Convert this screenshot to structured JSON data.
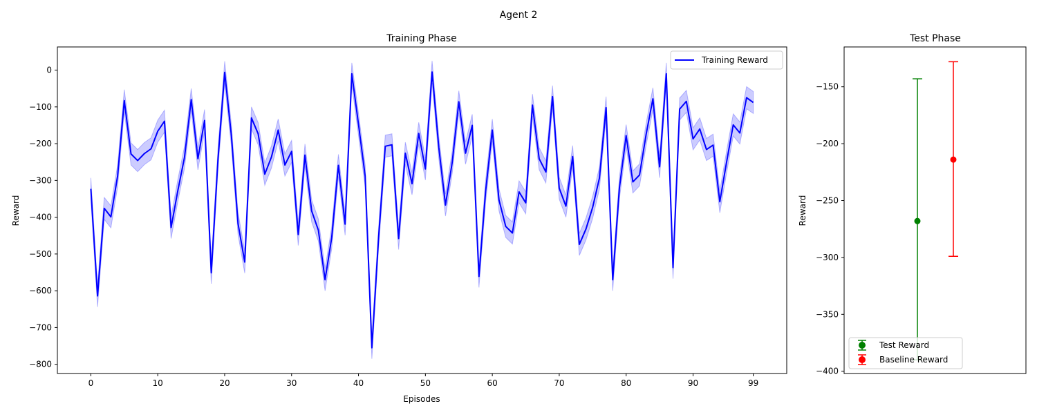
{
  "figure": {
    "suptitle": "Agent 2"
  },
  "chart_data": [
    {
      "type": "line",
      "title": "Training Phase",
      "xlabel": "Episodes",
      "ylabel": "Reward",
      "xlim": [
        -5,
        104
      ],
      "ylim": [
        -825,
        63
      ],
      "xticks": [
        0,
        10,
        20,
        30,
        40,
        50,
        60,
        70,
        80,
        90,
        99
      ],
      "yticks": [
        0,
        -100,
        -200,
        -300,
        -400,
        -500,
        -600,
        -700,
        -800
      ],
      "grid": false,
      "legend_position": "top-right",
      "series": [
        {
          "name": "Training Reward",
          "color": "#0000ff",
          "band_color": "#0000ff",
          "band_halfwidth": 30,
          "x": [
            0,
            1,
            2,
            3,
            4,
            5,
            6,
            7,
            8,
            9,
            10,
            11,
            12,
            13,
            14,
            15,
            16,
            17,
            18,
            19,
            20,
            21,
            22,
            23,
            24,
            25,
            26,
            27,
            28,
            29,
            30,
            31,
            32,
            33,
            34,
            35,
            36,
            37,
            38,
            39,
            40,
            41,
            42,
            43,
            44,
            45,
            46,
            47,
            48,
            49,
            50,
            51,
            52,
            53,
            54,
            55,
            56,
            57,
            58,
            59,
            60,
            61,
            62,
            63,
            64,
            65,
            66,
            67,
            68,
            69,
            70,
            71,
            72,
            73,
            74,
            75,
            76,
            77,
            78,
            79,
            80,
            81,
            82,
            83,
            84,
            85,
            86,
            87,
            88,
            89,
            90,
            91,
            92,
            93,
            94,
            95,
            96,
            97,
            98,
            99
          ],
          "values": [
            -323,
            -614,
            -376,
            -399,
            -288,
            -83,
            -228,
            -246,
            -227,
            -214,
            -166,
            -139,
            -428,
            -328,
            -237,
            -80,
            -241,
            -137,
            -551,
            -243,
            -6,
            -178,
            -417,
            -522,
            -130,
            -173,
            -283,
            -236,
            -163,
            -258,
            -221,
            -447,
            -231,
            -383,
            -435,
            -570,
            -456,
            -259,
            -419,
            -10,
            -148,
            -288,
            -755,
            -456,
            -207,
            -203,
            -458,
            -226,
            -309,
            -172,
            -269,
            -5,
            -210,
            -367,
            -251,
            -86,
            -226,
            -150,
            -561,
            -330,
            -163,
            -353,
            -425,
            -443,
            -331,
            -361,
            -95,
            -241,
            -277,
            -72,
            -321,
            -370,
            -235,
            -474,
            -432,
            -373,
            -294,
            -102,
            -570,
            -320,
            -178,
            -304,
            -285,
            -174,
            -78,
            -263,
            -10,
            -537,
            -106,
            -85,
            -187,
            -160,
            -216,
            -204,
            -358,
            -251,
            -149,
            -171,
            -75,
            -88
          ]
        }
      ]
    },
    {
      "type": "errorbar",
      "title": "Test Phase",
      "ylabel": "Reward",
      "ylim": [
        -402,
        -115
      ],
      "yticks": [
        -150,
        -200,
        -250,
        -300,
        -350,
        -400
      ],
      "grid": false,
      "legend_position": "bottom-left",
      "series": [
        {
          "name": "Test Reward",
          "color": "#008000",
          "x": 0,
          "mean": -268,
          "lower": -390,
          "upper": -143
        },
        {
          "name": "Baseline Reward",
          "color": "#ff0000",
          "x": 1,
          "mean": -214,
          "lower": -299,
          "upper": -128
        }
      ]
    }
  ]
}
